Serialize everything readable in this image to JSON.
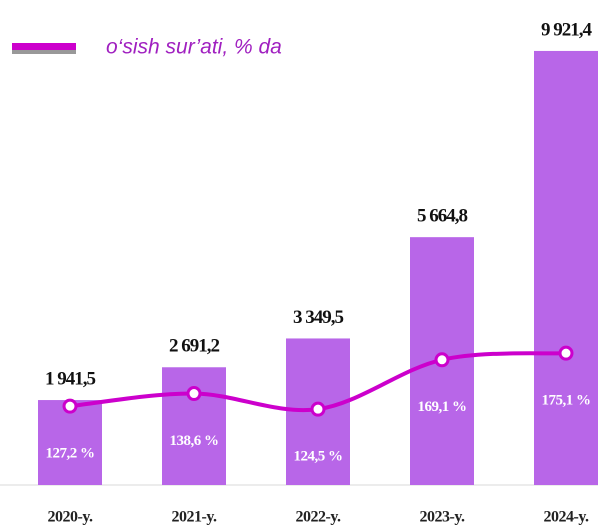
{
  "chart_data": {
    "type": "bar_line",
    "categories": [
      "2020-y.",
      "2021-y.",
      "2022-y.",
      "2023-y.",
      "2024-y."
    ],
    "series": [
      {
        "type": "bar",
        "color": "#b866e8",
        "values": [
          1941.5,
          2691.2,
          3349.5,
          5664.8,
          9921.4
        ],
        "value_labels": [
          "1 941,5",
          "2 691,2",
          "3 349,5",
          "5 664,8",
          "9 921,4"
        ]
      },
      {
        "type": "line",
        "name": "o‘sish sur’ati, % da",
        "color": "#cc00cc",
        "axis": "y2",
        "values": [
          127.2,
          138.6,
          124.5,
          169.1,
          175.1
        ],
        "value_labels": [
          "127,2 %",
          "138,6 %",
          "124,5 %",
          "169,1 %",
          "175,1 %"
        ]
      }
    ],
    "ylim": [
      0,
      10400
    ],
    "y2lim": [
      56,
      467
    ],
    "legend": "top-left"
  }
}
